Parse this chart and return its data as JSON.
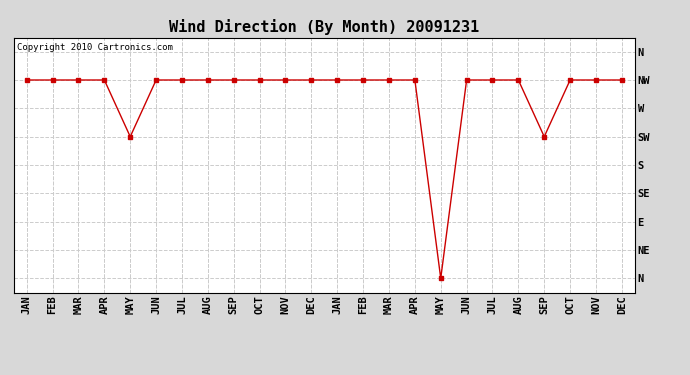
{
  "title": "Wind Direction (By Month) 20091231",
  "copyright": "Copyright 2010 Cartronics.com",
  "x_labels": [
    "JAN",
    "FEB",
    "MAR",
    "APR",
    "MAY",
    "JUN",
    "JUL",
    "AUG",
    "SEP",
    "OCT",
    "NOV",
    "DEC",
    "JAN",
    "FEB",
    "MAR",
    "APR",
    "MAY",
    "JUN",
    "JUL",
    "AUG",
    "SEP",
    "OCT",
    "NOV",
    "DEC"
  ],
  "y_labels": [
    "N",
    "NW",
    "W",
    "SW",
    "S",
    "SE",
    "E",
    "NE",
    "N"
  ],
  "y_tick_vals": [
    8,
    7,
    6,
    5,
    4,
    3,
    2,
    1,
    0
  ],
  "line_color": "#cc0000",
  "marker": "s",
  "marker_size": 2.5,
  "plot_bg_color": "#ffffff",
  "fig_bg_color": "#d8d8d8",
  "grid_color": "#cccccc",
  "values": [
    7,
    7,
    7,
    7,
    5,
    7,
    7,
    7,
    7,
    7,
    7,
    7,
    7,
    7,
    7,
    7,
    0,
    7,
    7,
    7,
    5,
    7,
    7,
    7
  ],
  "title_fontsize": 11,
  "tick_fontsize": 7.5,
  "copyright_fontsize": 6.5
}
